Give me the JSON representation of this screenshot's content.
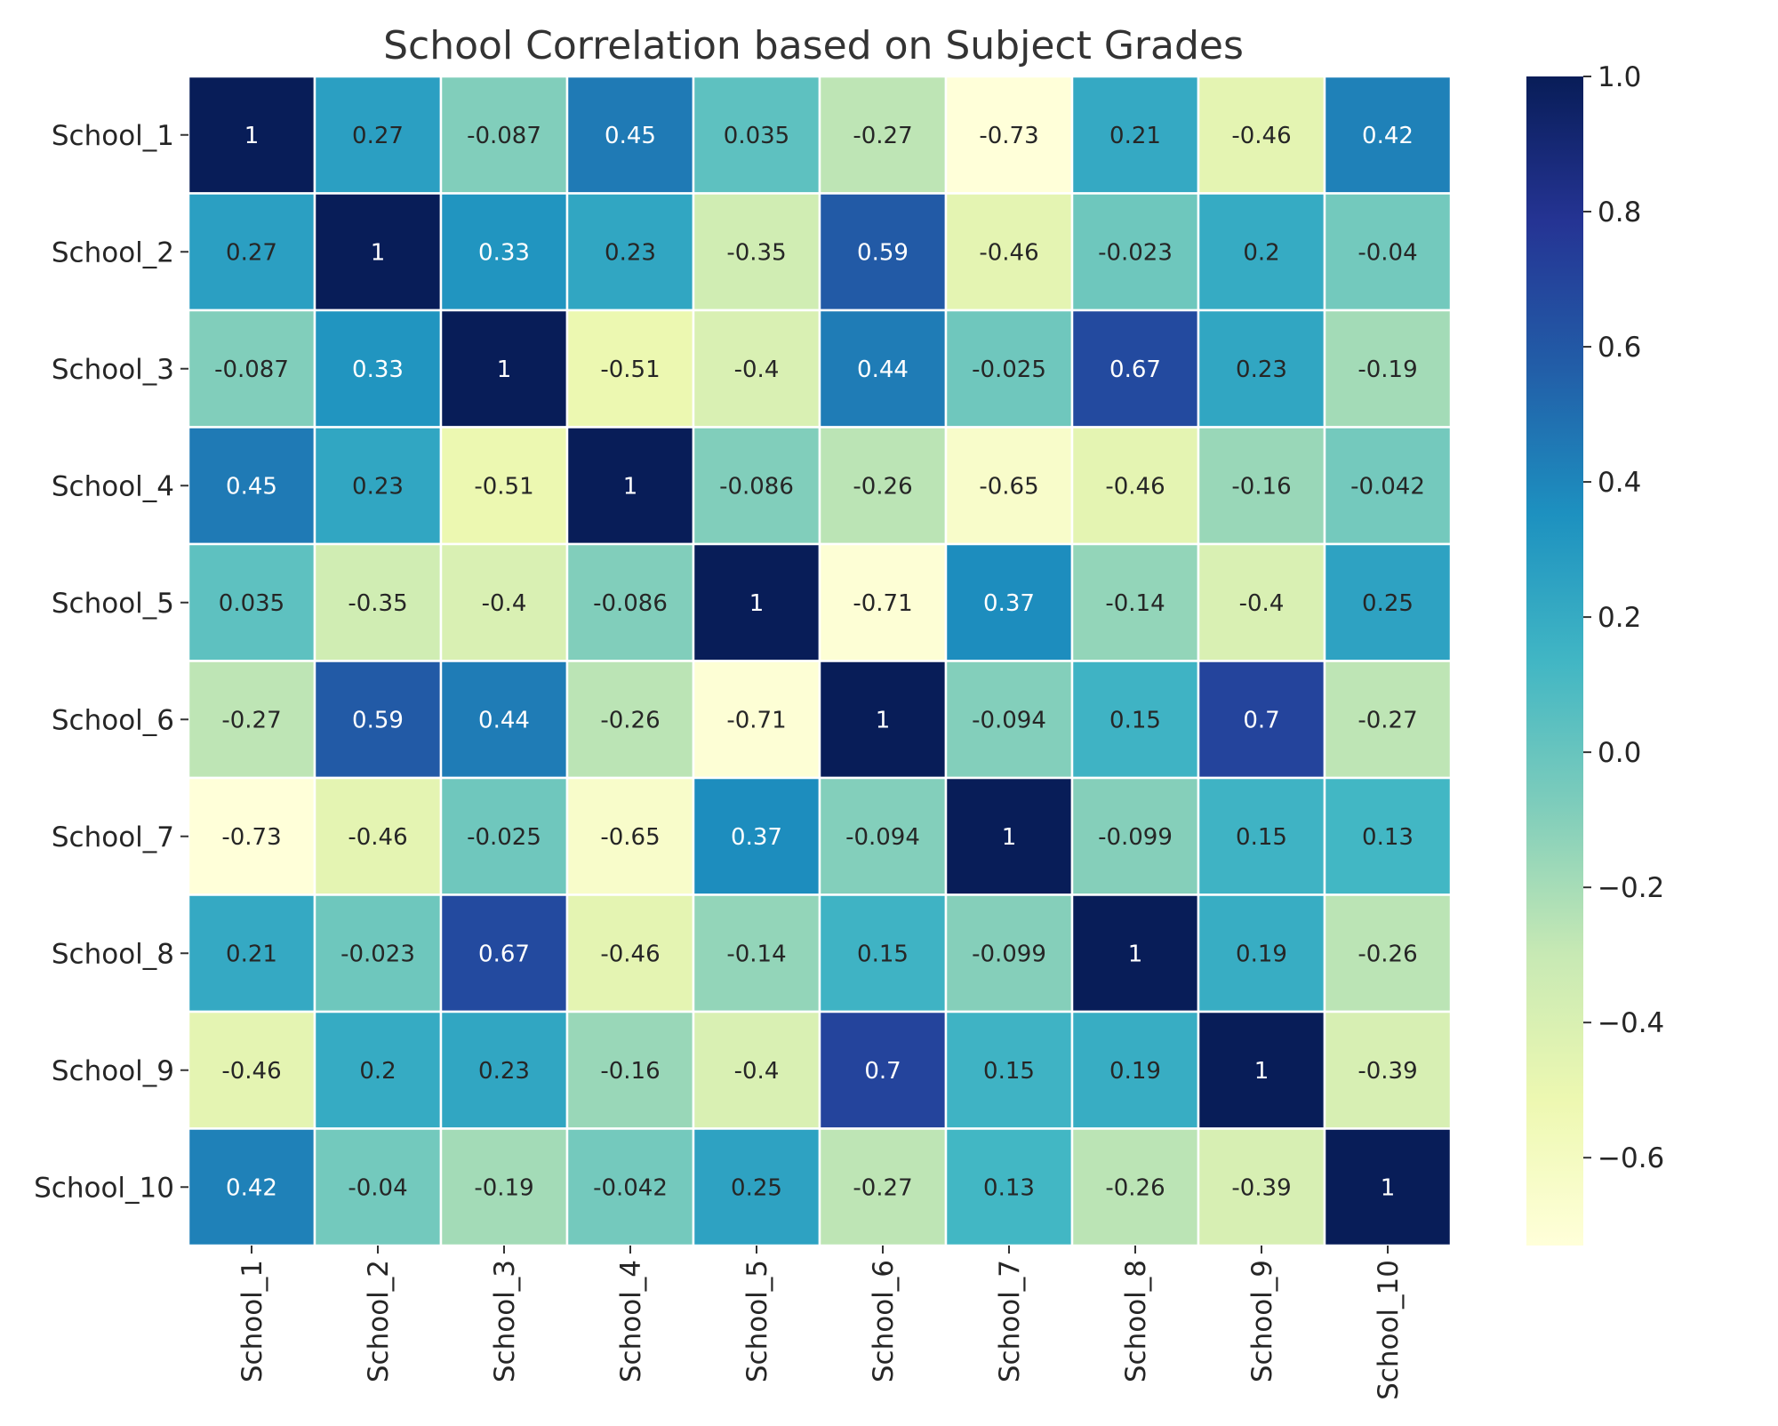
{
  "chart_data": {
    "type": "heatmap",
    "title": "School Correlation based on Subject Grades",
    "xlabel": "",
    "ylabel": "",
    "rows": [
      "School_1",
      "School_2",
      "School_3",
      "School_4",
      "School_5",
      "School_6",
      "School_7",
      "School_8",
      "School_9",
      "School_10"
    ],
    "columns": [
      "School_1",
      "School_2",
      "School_3",
      "School_4",
      "School_5",
      "School_6",
      "School_7",
      "School_8",
      "School_9",
      "School_10"
    ],
    "values": [
      [
        "1",
        "0.27",
        "-0.087",
        "0.45",
        "0.035",
        "-0.27",
        "-0.73",
        "0.21",
        "-0.46",
        "0.42"
      ],
      [
        "0.27",
        "1",
        "0.33",
        "0.23",
        "-0.35",
        "0.59",
        "-0.46",
        "-0.023",
        "0.2",
        "-0.04"
      ],
      [
        "-0.087",
        "0.33",
        "1",
        "-0.51",
        "-0.4",
        "0.44",
        "-0.025",
        "0.67",
        "0.23",
        "-0.19"
      ],
      [
        "0.45",
        "0.23",
        "-0.51",
        "1",
        "-0.086",
        "-0.26",
        "-0.65",
        "-0.46",
        "-0.16",
        "-0.042"
      ],
      [
        "0.035",
        "-0.35",
        "-0.4",
        "-0.086",
        "1",
        "-0.71",
        "0.37",
        "-0.14",
        "-0.4",
        "0.25"
      ],
      [
        "-0.27",
        "0.59",
        "0.44",
        "-0.26",
        "-0.71",
        "1",
        "-0.094",
        "0.15",
        "0.7",
        "-0.27"
      ],
      [
        "-0.73",
        "-0.46",
        "-0.025",
        "-0.65",
        "0.37",
        "-0.094",
        "1",
        "-0.099",
        "0.15",
        "0.13"
      ],
      [
        "0.21",
        "-0.023",
        "0.67",
        "-0.46",
        "-0.14",
        "0.15",
        "-0.099",
        "1",
        "0.19",
        "-0.26"
      ],
      [
        "-0.46",
        "0.2",
        "0.23",
        "-0.16",
        "-0.4",
        "0.7",
        "0.15",
        "0.19",
        "1",
        "-0.39"
      ],
      [
        "0.42",
        "-0.04",
        "-0.19",
        "-0.042",
        "0.25",
        "-0.27",
        "0.13",
        "-0.26",
        "-0.39",
        "1"
      ]
    ],
    "colorbar": {
      "range": [
        -0.73,
        1.0
      ],
      "ticks": [
        -0.6,
        -0.4,
        -0.2,
        0.0,
        0.2,
        0.4,
        0.6,
        0.8,
        1.0
      ],
      "tick_labels": [
        "−0.6",
        "−0.4",
        "−0.2",
        "0.0",
        "0.2",
        "0.4",
        "0.6",
        "0.8",
        "1.0"
      ]
    },
    "colormap": "YlGnBu",
    "grid": true,
    "colors": {
      "stops": [
        "#ffffd9",
        "#edf8b1",
        "#c7e9b4",
        "#7fcdbb",
        "#41b6c4",
        "#1d91c0",
        "#225ea8",
        "#253494",
        "#081d58"
      ],
      "text_dark": "#262626",
      "text_light": "#ffffff",
      "cell_border": "#ffffff"
    }
  }
}
